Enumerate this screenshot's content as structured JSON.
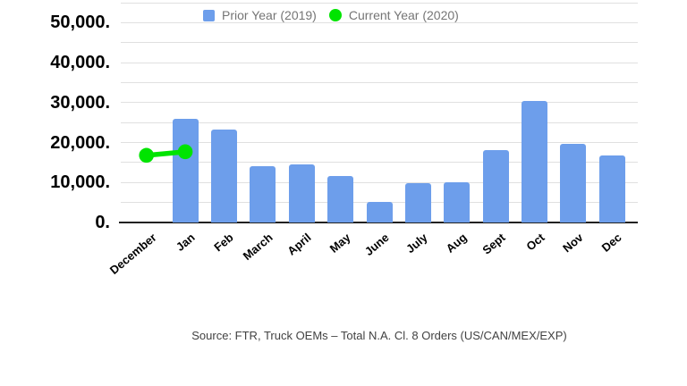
{
  "chart": {
    "legend": {
      "items": [
        {
          "label": "Prior Year (2019)",
          "marker": "square-icon",
          "color": "#6d9eeb"
        },
        {
          "label": "Current Year (2020)",
          "marker": "circle-icon",
          "color": "#00e400"
        }
      ]
    },
    "source_note": "Source: FTR, Truck OEMs – Total N.A. Cl. 8 Orders (US/CAN/MEX/EXP)"
  },
  "colors": {
    "bar_blue": "#6d9eeb",
    "line_green": "#00e400",
    "gridline": "#e0e0e0",
    "axis": "#212121",
    "tick_text": "#000000",
    "legend_text": "#757575",
    "source_text": "#424242"
  },
  "chart_data": {
    "type": "bar",
    "title": "",
    "categories": [
      "December",
      "Jan",
      "Feb",
      "March",
      "April",
      "May",
      "June",
      "July",
      "Aug",
      "Sept",
      "Oct",
      "Nov",
      "Dec"
    ],
    "series": [
      {
        "name": "Prior Year (2019)",
        "type": "bar",
        "color": "#6d9eeb",
        "values": [
          null,
          26000,
          23200,
          14000,
          14600,
          11600,
          5100,
          9900,
          10100,
          18200,
          30400,
          19700,
          16800
        ]
      },
      {
        "name": "Current Year (2020)",
        "type": "line",
        "color": "#00e400",
        "marker": "circle",
        "values": [
          16800,
          17700,
          null,
          null,
          null,
          null,
          null,
          null,
          null,
          null,
          null,
          null,
          null
        ]
      }
    ],
    "xlabel": "",
    "ylabel": "",
    "ylim": [
      0,
      55000
    ],
    "grid": true,
    "grid_step": 5000,
    "ytick_labels": [
      {
        "value": 0,
        "label": "0."
      },
      {
        "value": 10000,
        "label": "10,000."
      },
      {
        "value": 20000,
        "label": "20,000."
      },
      {
        "value": 30000,
        "label": "30,000."
      },
      {
        "value": 40000,
        "label": "40,000."
      },
      {
        "value": 50000,
        "label": "50,000."
      }
    ],
    "legend_position": "top"
  }
}
